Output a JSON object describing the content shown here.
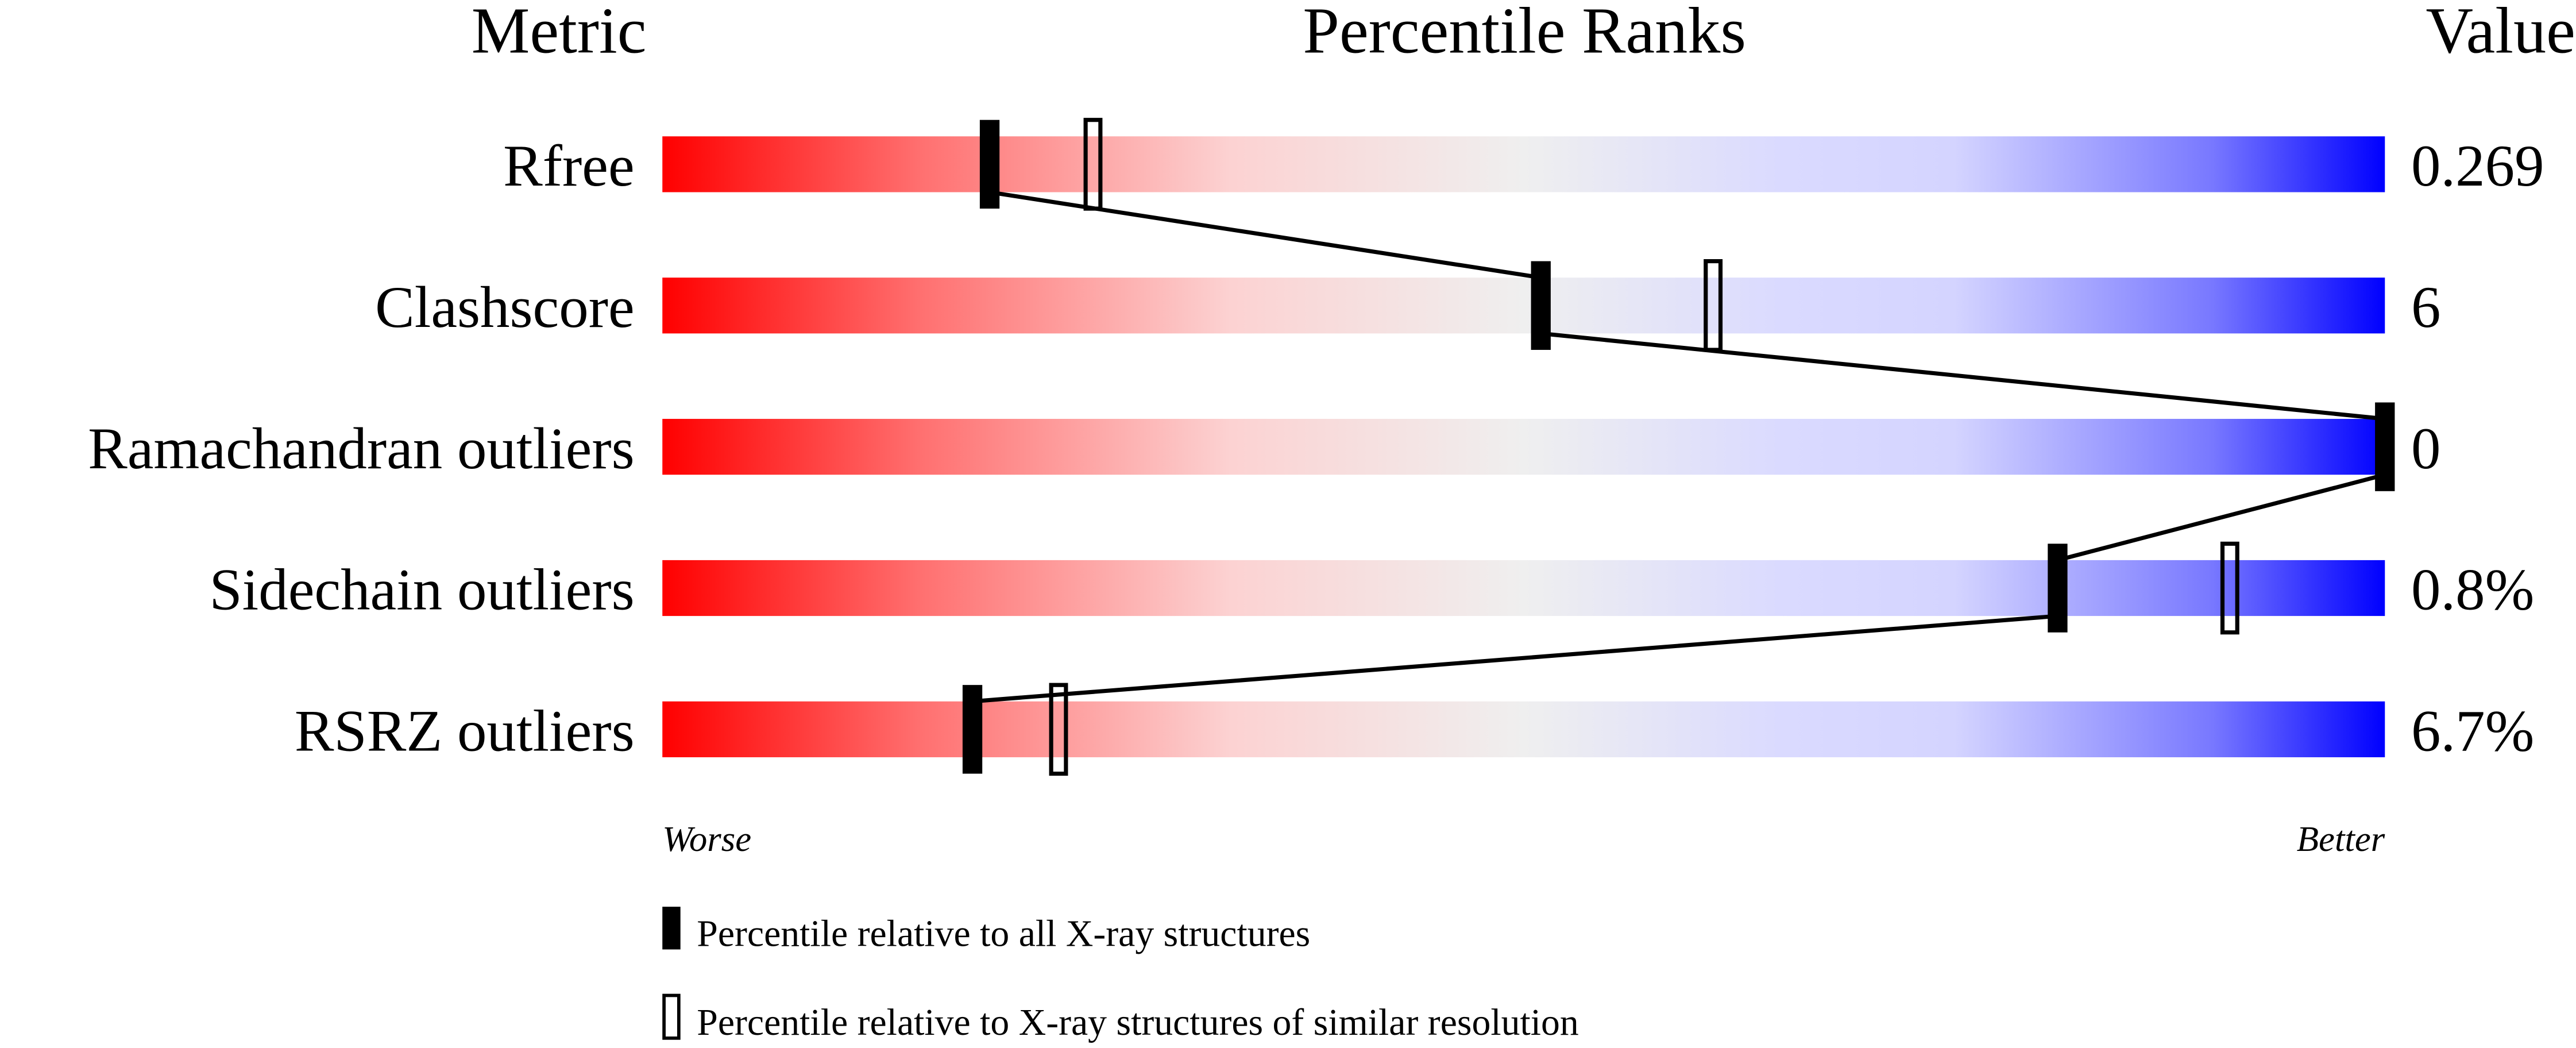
{
  "chart_data": {
    "type": "bar",
    "headers": {
      "metric": "Metric",
      "ranks": "Percentile Ranks",
      "value": "Value"
    },
    "xlim": [
      0,
      100
    ],
    "metrics": [
      {
        "name": "Rfree",
        "value": "0.269",
        "percentile_all": 19,
        "percentile_similar": 25
      },
      {
        "name": "Clashscore",
        "value": "6",
        "percentile_all": 51,
        "percentile_similar": 61
      },
      {
        "name": "Ramachandran outliers",
        "value": "0",
        "percentile_all": 100,
        "percentile_similar": null
      },
      {
        "name": "Sidechain outliers",
        "value": "0.8%",
        "percentile_all": 81,
        "percentile_similar": 91
      },
      {
        "name": "RSRZ outliers",
        "value": "6.7%",
        "percentile_all": 18,
        "percentile_similar": 23
      }
    ],
    "axis_labels": {
      "left": "Worse",
      "right": "Better"
    },
    "legend": {
      "placement": "bottom",
      "all": "Percentile relative to all X-ray structures",
      "similar": "Percentile relative to X-ray structures of similar resolution"
    },
    "colors": {
      "worse": "#ff0000",
      "middle": "#efefef",
      "better": "#0000ff",
      "marker": "#000000"
    }
  }
}
